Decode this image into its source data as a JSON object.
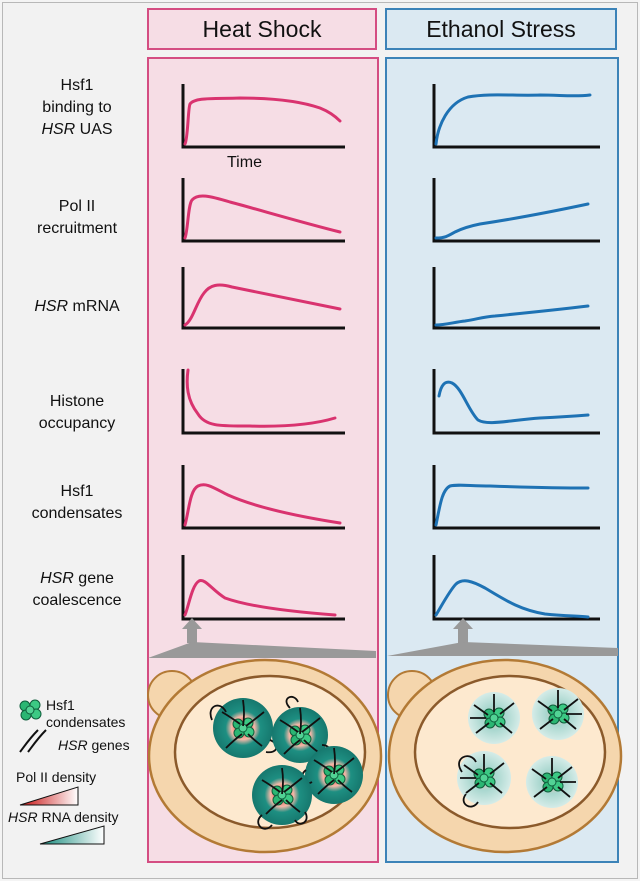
{
  "columns": {
    "heat": {
      "title": "Heat Shock",
      "color": "#d9336f"
    },
    "ethanol": {
      "title": "Ethanol Stress",
      "color": "#1e72b4"
    }
  },
  "rows": [
    {
      "line1": "Hsf1",
      "line2": "binding to",
      "line3_italic": "HSR",
      "line3_rest": " UAS"
    },
    {
      "line1": "Pol II",
      "line2": "recruitment"
    },
    {
      "line1_italic": "HSR",
      "line1_rest": " mRNA"
    },
    {
      "line1": "Histone",
      "line2": "occupancy"
    },
    {
      "line1": "Hsf1",
      "line2": "condensates"
    },
    {
      "line1_italic": "HSR",
      "line1_rest": " gene",
      "line2": "coalescence"
    }
  ],
  "axis_label": "Time",
  "legend": {
    "condensates_line1": "Hsf1",
    "condensates_line2": "condensates",
    "genes_italic": "HSR",
    "genes_rest": " genes",
    "pol2": "Pol II density",
    "rna_italic": "HSR",
    "rna_rest": " RNA density"
  }
}
